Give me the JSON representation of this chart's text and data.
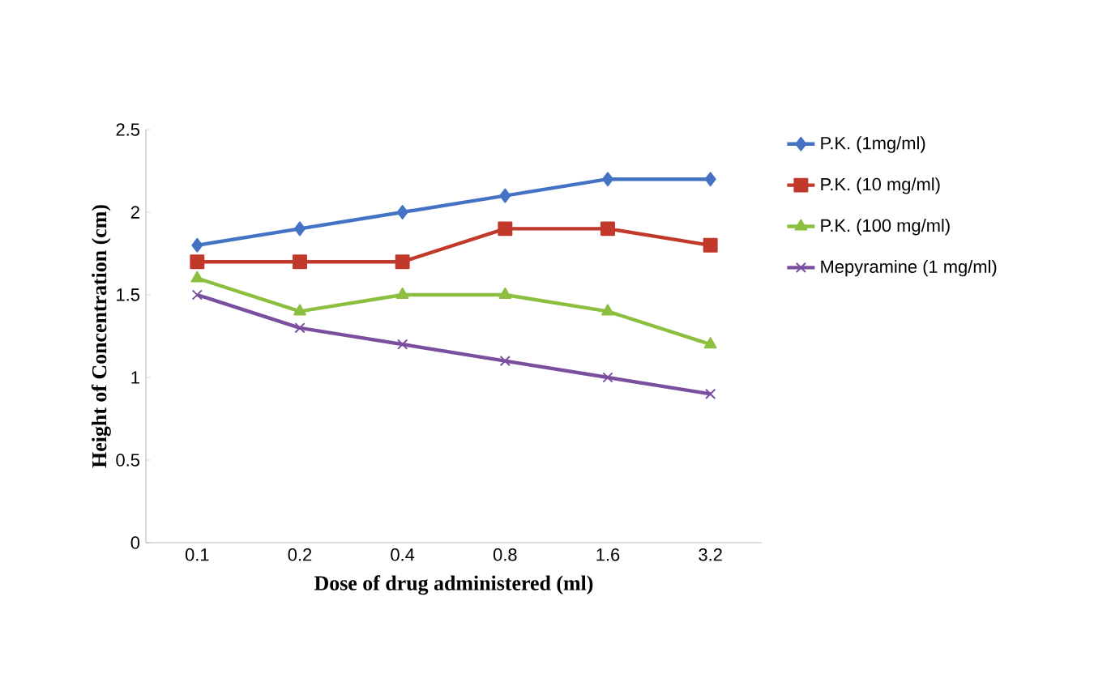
{
  "chart_data": {
    "type": "line",
    "xlabel": "Dose of drug administered (ml)",
    "ylabel": "Height of Concentration (cm)",
    "categories": [
      "0.1",
      "0.2",
      "0.4",
      "0.8",
      "1.6",
      "3.2"
    ],
    "ylim": [
      0,
      2.5
    ],
    "yticks": [
      0,
      0.5,
      1,
      1.5,
      2,
      2.5
    ],
    "legend": "right",
    "grid": false,
    "line_style": "solid",
    "series": [
      {
        "name": "P.K. (1mg/ml)",
        "color": "#4472c4",
        "marker": "diamond",
        "values": [
          1.8,
          1.9,
          2.0,
          2.1,
          2.2,
          2.2
        ]
      },
      {
        "name": "P.K. (10 mg/ml)",
        "color": "#c0392b",
        "marker": "square",
        "values": [
          1.7,
          1.7,
          1.7,
          1.9,
          1.9,
          1.8
        ]
      },
      {
        "name": "P.K. (100 mg/ml)",
        "color": "#8cbf3f",
        "marker": "triangle",
        "values": [
          1.6,
          1.4,
          1.5,
          1.5,
          1.4,
          1.2
        ]
      },
      {
        "name": "Mepyramine (1 mg/ml)",
        "color": "#7b4fa0",
        "marker": "cross",
        "values": [
          1.5,
          1.3,
          1.2,
          1.1,
          1.0,
          0.9
        ]
      }
    ]
  }
}
